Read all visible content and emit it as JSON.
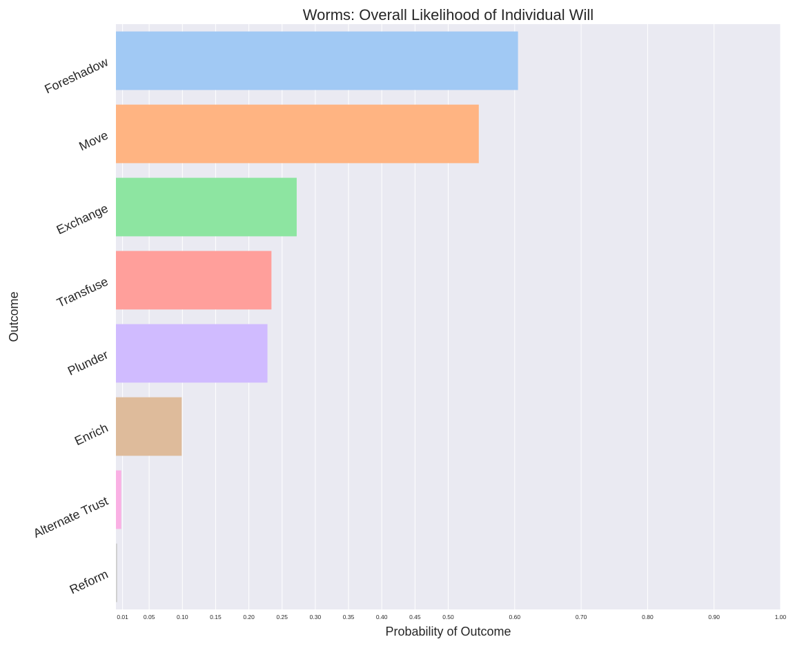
{
  "chart_data": {
    "type": "bar",
    "orientation": "horizontal",
    "title": "Worms: Overall Likelihood of Individual Will",
    "xlabel": "Probability of Outcome",
    "ylabel": "Outcome",
    "categories": [
      "Foreshadow",
      "Move",
      "Exchange",
      "Transfuse",
      "Plunder",
      "Enrich",
      "Alternate Trust",
      "Reform"
    ],
    "values": [
      0.605,
      0.546,
      0.272,
      0.234,
      0.228,
      0.099,
      0.008,
      0.002
    ],
    "colors": [
      "#a1c9f4",
      "#ffb482",
      "#8de5a1",
      "#ff9f9b",
      "#d0bbff",
      "#debb9b",
      "#fab0e4",
      "#cfcfcf"
    ],
    "xlim": [
      0,
      1.0
    ],
    "xticks": [
      0.01,
      0.05,
      0.1,
      0.15,
      0.2,
      0.25,
      0.3,
      0.35,
      0.4,
      0.45,
      0.5,
      0.6,
      0.7,
      0.8,
      0.9,
      1.0
    ],
    "xtick_labels": [
      "0.01",
      "0.05",
      "0.10",
      "0.15",
      "0.20",
      "0.25",
      "0.30",
      "0.35",
      "0.40",
      "0.45",
      "0.50",
      "0.60",
      "0.70",
      "0.80",
      "0.90",
      "1.00"
    ],
    "grid": true,
    "background_color": "#eaeaf2",
    "legend": "none"
  }
}
